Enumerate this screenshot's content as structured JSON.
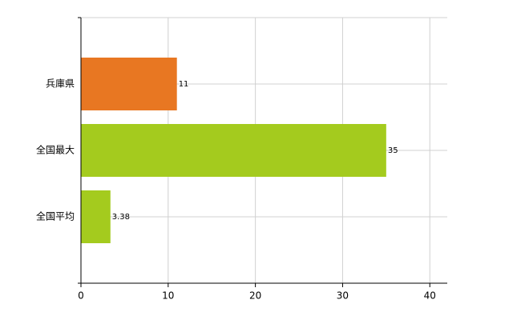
{
  "chart_data": {
    "type": "barh",
    "categories": [
      "兵庫県",
      "全国最大",
      "全国平均"
    ],
    "values": [
      11,
      35,
      3.38
    ],
    "colors": [
      "#e87722",
      "#a4cb1e",
      "#a4cb1e"
    ],
    "xlim": [
      0,
      42
    ],
    "xticks": [
      0,
      10,
      20,
      30,
      40
    ],
    "grid": true
  }
}
